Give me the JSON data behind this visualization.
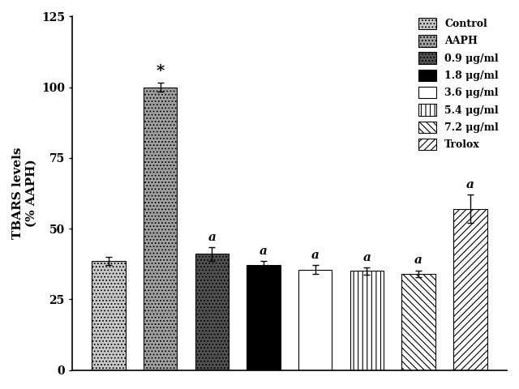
{
  "categories": [
    "Control",
    "AAPH",
    "0.9 μg/ml",
    "1.8 μg/ml",
    "3.6 μg/ml",
    "5.4 μg/ml",
    "7.2 μg/ml",
    "Trolox"
  ],
  "values": [
    38.5,
    100.0,
    41.0,
    37.0,
    35.5,
    35.0,
    34.0,
    57.0
  ],
  "errors": [
    1.5,
    1.5,
    2.5,
    1.5,
    1.5,
    1.2,
    1.2,
    5.0
  ],
  "ylabel": "TBARS levels\n(% AAPH)",
  "ylim": [
    0,
    125
  ],
  "yticks": [
    0,
    25,
    50,
    75,
    100,
    125
  ],
  "annotations_star_idx": 1,
  "annotations_a_indices": [
    2,
    3,
    4,
    5,
    6,
    7
  ],
  "legend_labels": [
    "Control",
    "AAPH",
    "0.9 μg/ml",
    "1.8 μg/ml",
    "3.6 μg/ml",
    "5.4 μg/ml",
    "7.2 μg/ml",
    "Trolox"
  ],
  "bar_facecolors": [
    "#c8c8c8",
    "#a0a0a0",
    "#505050",
    "#000000",
    "#ffffff",
    "#ffffff",
    "#ffffff",
    "#ffffff"
  ],
  "bar_hatches": [
    "....",
    "....",
    "....",
    "",
    "===",
    "|||",
    "\\\\",
    "////"
  ],
  "legend_facecolors": [
    "#c8c8c8",
    "#a0a0a0",
    "#505050",
    "#000000",
    "#ffffff",
    "#ffffff",
    "#ffffff",
    "#ffffff"
  ],
  "legend_hatches": [
    "....",
    "....",
    "....",
    "",
    "===",
    "|||",
    "\\\\",
    "////"
  ],
  "figsize": [
    6.4,
    4.8
  ],
  "dpi": 100
}
